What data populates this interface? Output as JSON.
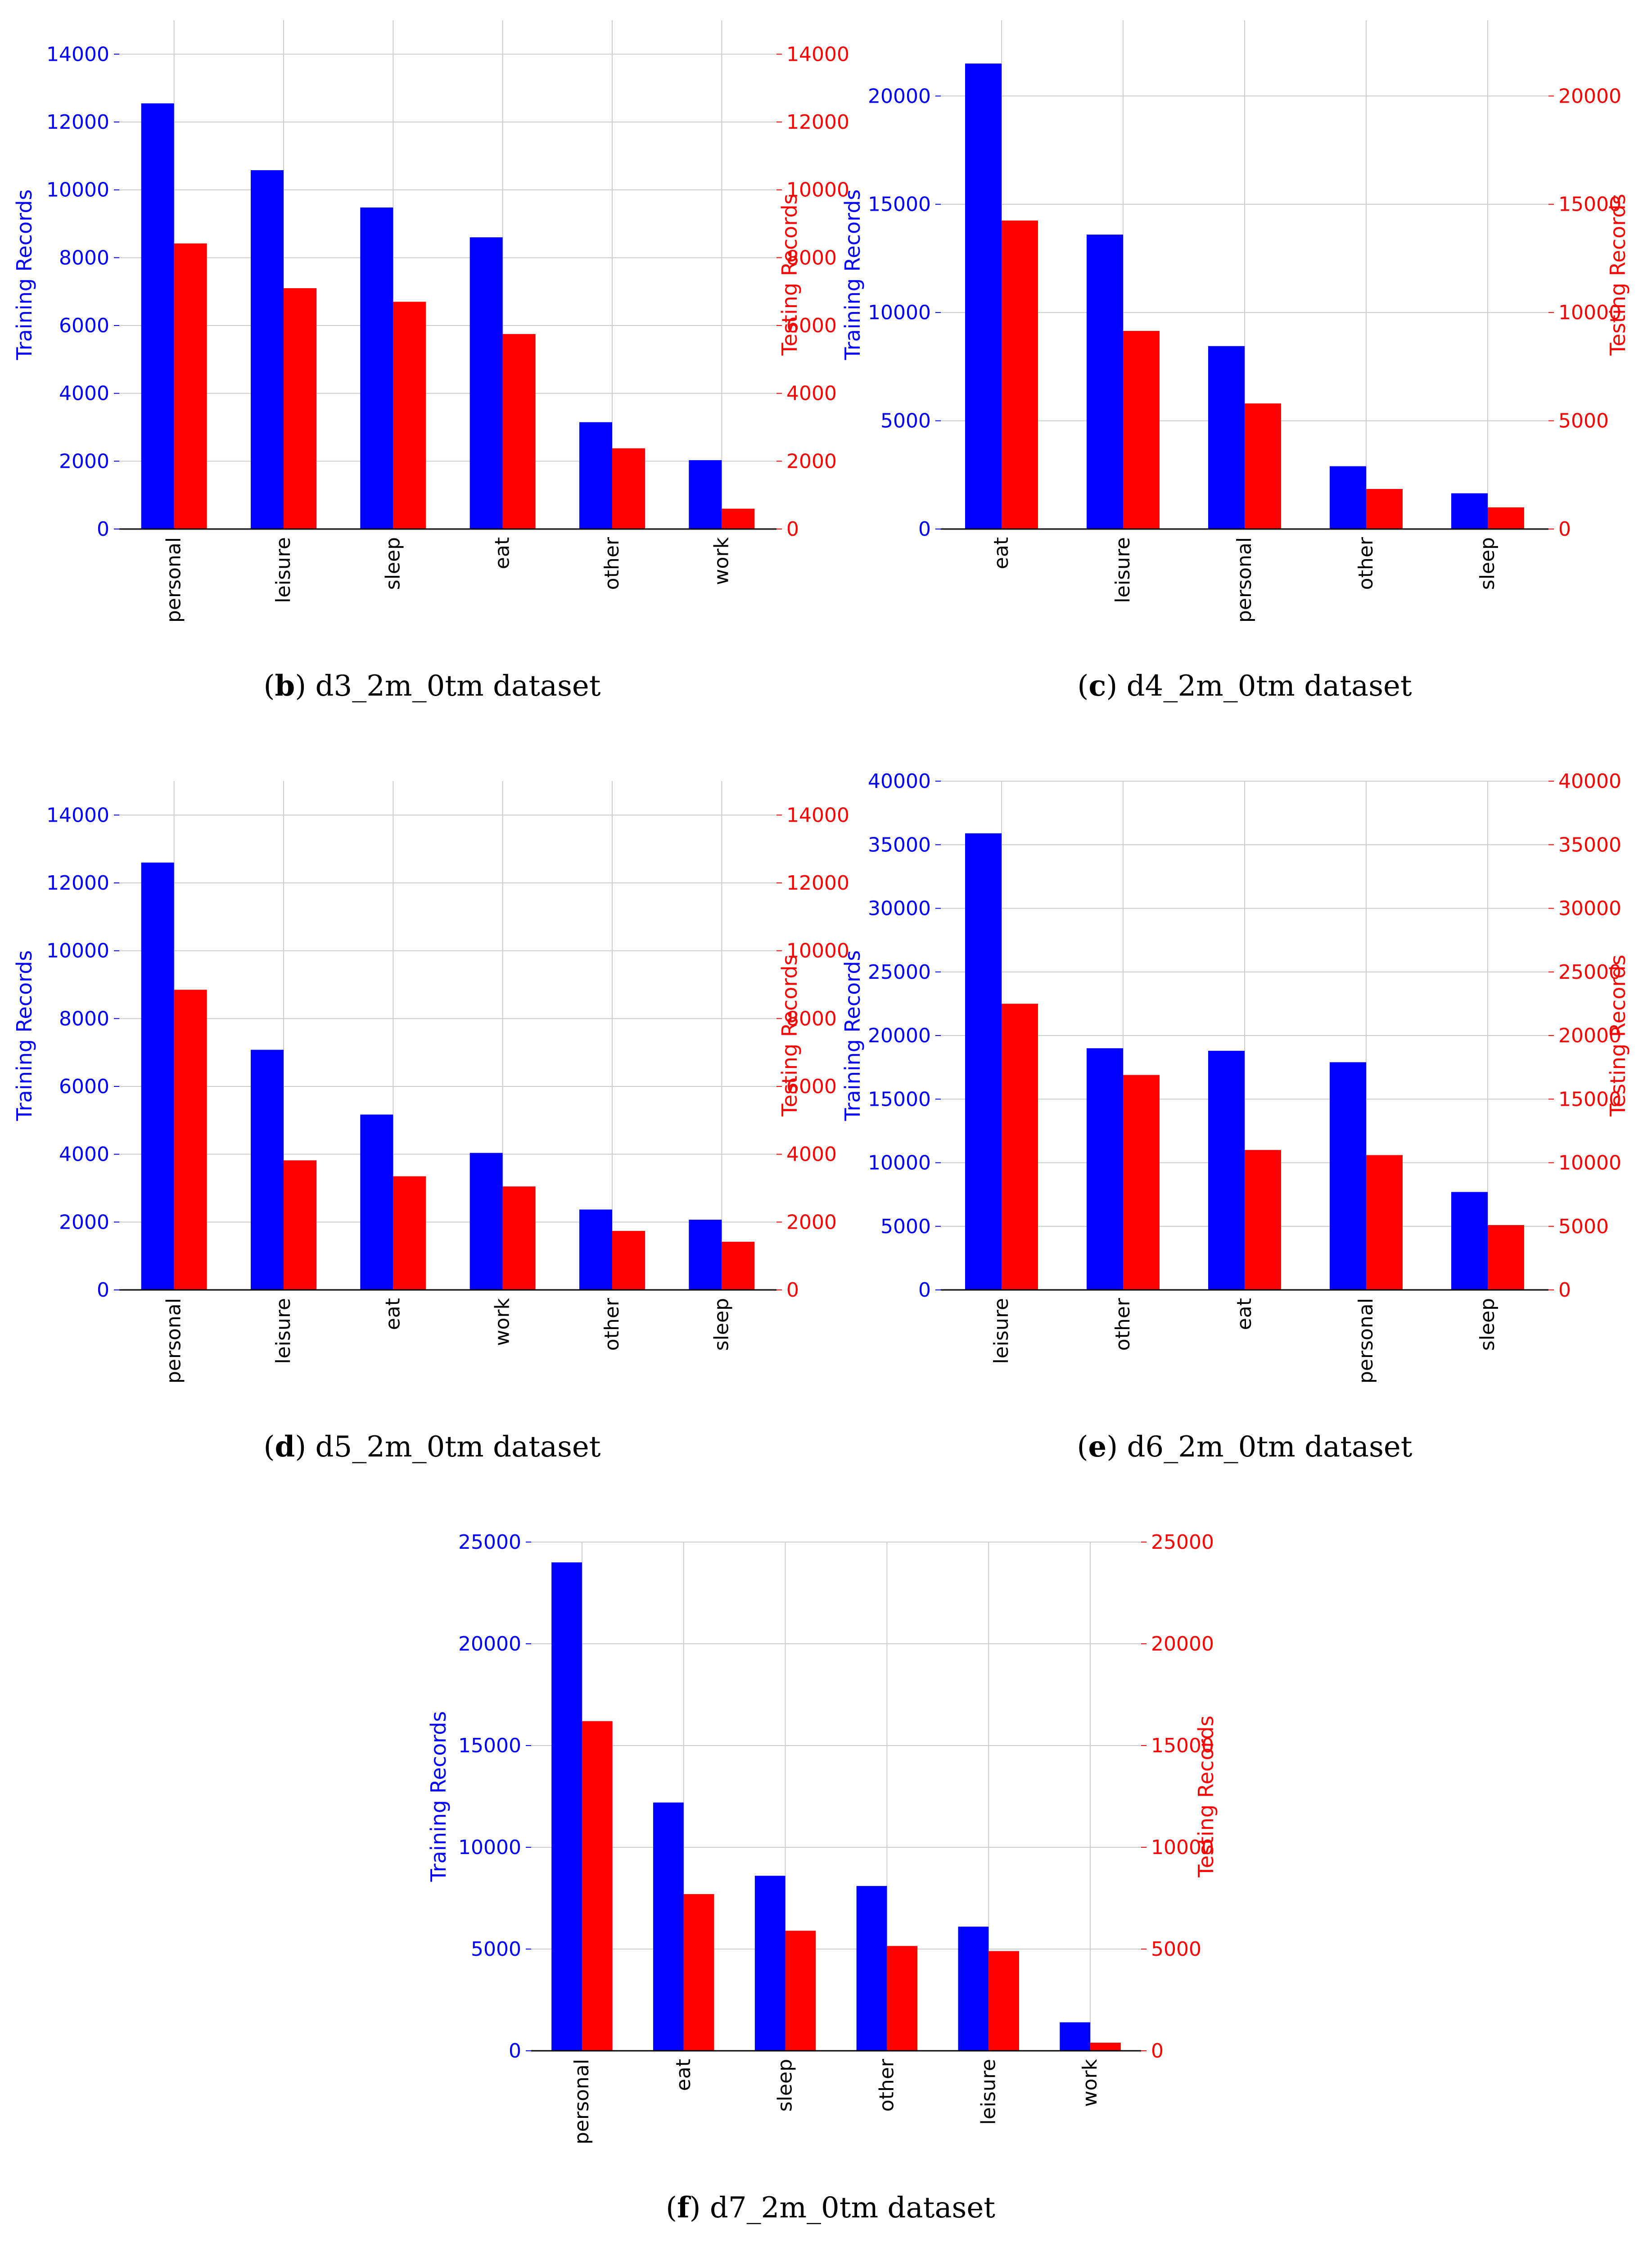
{
  "colors": {
    "training": "#0000ff",
    "testing": "#ff0000",
    "grid": "#cccccc",
    "axis": "#000000"
  },
  "chart_data": [
    {
      "id": "b",
      "type": "bar",
      "caption_letter": "b",
      "caption_text": "d3_2m_0tm dataset",
      "caption_open": "(",
      "caption_close": ")",
      "categories": [
        "personal",
        "leisure",
        "sleep",
        "eat",
        "other",
        "work"
      ],
      "series": [
        {
          "name": "Training Records",
          "axis": "left",
          "values": [
            12550,
            10580,
            9480,
            8600,
            3150,
            2030
          ]
        },
        {
          "name": "Testing Records",
          "axis": "right",
          "values": [
            8420,
            7100,
            6700,
            5750,
            2380,
            600
          ]
        }
      ],
      "ylabel": "Training Records",
      "y2label": "Testing Records",
      "ylim": [
        0,
        15000
      ],
      "y2lim": [
        0,
        15000
      ],
      "yticks": [
        0,
        2000,
        4000,
        6000,
        8000,
        10000,
        12000,
        14000
      ],
      "y2ticks": [
        0,
        2000,
        4000,
        6000,
        8000,
        10000,
        12000,
        14000
      ],
      "grid": true
    },
    {
      "id": "c",
      "type": "bar",
      "caption_letter": "c",
      "caption_text": "d4_2m_0tm dataset",
      "caption_open": "(",
      "caption_close": ")",
      "categories": [
        "eat",
        "leisure",
        "personal",
        "other",
        "sleep"
      ],
      "series": [
        {
          "name": "Training Records",
          "axis": "left",
          "values": [
            21500,
            13600,
            8450,
            2900,
            1650
          ]
        },
        {
          "name": "Testing Records",
          "axis": "right",
          "values": [
            14250,
            9150,
            5800,
            1850,
            1000
          ]
        }
      ],
      "ylabel": "Training Records",
      "y2label": "Testing Records",
      "ylim": [
        0,
        23500
      ],
      "y2lim": [
        0,
        23500
      ],
      "yticks": [
        0,
        5000,
        10000,
        15000,
        20000
      ],
      "y2ticks": [
        0,
        5000,
        10000,
        15000,
        20000
      ],
      "grid": true
    },
    {
      "id": "d",
      "type": "bar",
      "caption_letter": "d",
      "caption_text": "d5_2m_0tm dataset",
      "caption_open": "(",
      "caption_close": ")",
      "categories": [
        "personal",
        "leisure",
        "eat",
        "work",
        "other",
        "sleep"
      ],
      "series": [
        {
          "name": "Training Records",
          "axis": "left",
          "values": [
            12600,
            7080,
            5170,
            4040,
            2370,
            2070
          ]
        },
        {
          "name": "Testing Records",
          "axis": "right",
          "values": [
            8850,
            3820,
            3350,
            3050,
            1740,
            1420
          ]
        }
      ],
      "ylabel": "Training Records",
      "y2label": "Testing Records",
      "ylim": [
        0,
        15000
      ],
      "y2lim": [
        0,
        15000
      ],
      "yticks": [
        0,
        2000,
        4000,
        6000,
        8000,
        10000,
        12000,
        14000
      ],
      "y2ticks": [
        0,
        2000,
        4000,
        6000,
        8000,
        10000,
        12000,
        14000
      ],
      "grid": true
    },
    {
      "id": "e",
      "type": "bar",
      "caption_letter": "e",
      "caption_text": "d6_2m_0tm dataset",
      "caption_open": "(",
      "caption_close": ")",
      "categories": [
        "leisure",
        "other",
        "eat",
        "personal",
        "sleep"
      ],
      "series": [
        {
          "name": "Training Records",
          "axis": "left",
          "values": [
            35900,
            19000,
            18800,
            17900,
            7700
          ]
        },
        {
          "name": "Testing Records",
          "axis": "right",
          "values": [
            22500,
            16900,
            11000,
            10600,
            5100
          ]
        }
      ],
      "ylabel": "Training Records",
      "y2label": "Testing Records",
      "ylim": [
        0,
        40000
      ],
      "y2lim": [
        0,
        40000
      ],
      "yticks": [
        0,
        5000,
        10000,
        15000,
        20000,
        25000,
        30000,
        35000,
        40000
      ],
      "y2ticks": [
        0,
        5000,
        10000,
        15000,
        20000,
        25000,
        30000,
        35000,
        40000
      ],
      "grid": true
    },
    {
      "id": "f",
      "type": "bar",
      "caption_letter": "f",
      "caption_text": "d7_2m_0tm dataset",
      "caption_open": "(",
      "caption_close": ")",
      "categories": [
        "personal",
        "eat",
        "sleep",
        "other",
        "leisure",
        "work"
      ],
      "series": [
        {
          "name": "Training Records",
          "axis": "left",
          "values": [
            24000,
            12200,
            8600,
            8100,
            6100,
            1400
          ]
        },
        {
          "name": "Testing Records",
          "axis": "right",
          "values": [
            16200,
            7700,
            5900,
            5150,
            4900,
            400
          ]
        }
      ],
      "ylabel": "Training Records",
      "y2label": "Testing Records",
      "ylim": [
        0,
        25000
      ],
      "y2lim": [
        0,
        25000
      ],
      "yticks": [
        0,
        5000,
        10000,
        15000,
        20000,
        25000
      ],
      "y2ticks": [
        0,
        5000,
        10000,
        15000,
        20000,
        25000
      ],
      "grid": true
    }
  ]
}
